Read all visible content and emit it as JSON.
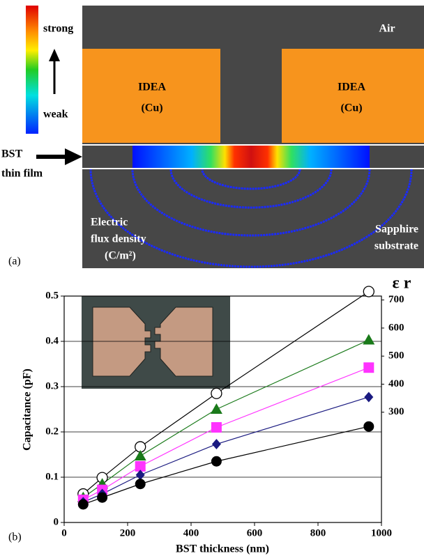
{
  "panel_a": {
    "air": "Air",
    "left_electrode": [
      "IDEA",
      "(Cu)"
    ],
    "right_electrode": [
      "IDEA",
      "(Cu)"
    ],
    "colorbar": [
      "strong",
      "weak"
    ],
    "film": [
      "BST",
      "thin film"
    ],
    "flux": [
      "Electric",
      "flux density",
      "(C/m²)"
    ],
    "substrate": [
      "Sapphire",
      "substrate"
    ],
    "panel": "(a)"
  },
  "chart_data": {
    "type": "line",
    "panel": "(b)",
    "x_label": "BST thickness (nm)",
    "y_label": "Capacitance (pF)",
    "y2_label": "ε r",
    "x": [
      60,
      120,
      240,
      480,
      960
    ],
    "xlim": [
      0,
      1000
    ],
    "xticks": [
      0,
      200,
      400,
      600,
      800,
      1000
    ],
    "ylim": [
      0,
      0.5
    ],
    "yticks": [
      0,
      0.1,
      0.2,
      0.3,
      0.4,
      0.5
    ],
    "y2lim": [
      -93,
      714
    ],
    "y2ticks": [
      300,
      400,
      500,
      600,
      700
    ],
    "grid": true,
    "series": [
      {
        "marker": "circle-open",
        "color": "#000000",
        "values": [
          0.063,
          0.099,
          0.167,
          0.285,
          0.51
        ]
      },
      {
        "marker": "triangle",
        "color": "#1a7a1a",
        "values": [
          0.055,
          0.085,
          0.147,
          0.25,
          0.403
        ]
      },
      {
        "marker": "square",
        "color": "#ff33ff",
        "values": [
          0.05,
          0.072,
          0.124,
          0.21,
          0.342
        ]
      },
      {
        "marker": "diamond",
        "color": "#1a1a80",
        "values": [
          0.045,
          0.063,
          0.105,
          0.173,
          0.277
        ]
      },
      {
        "marker": "circle",
        "color": "#000000",
        "values": [
          0.04,
          0.055,
          0.085,
          0.135,
          0.212
        ]
      }
    ]
  }
}
